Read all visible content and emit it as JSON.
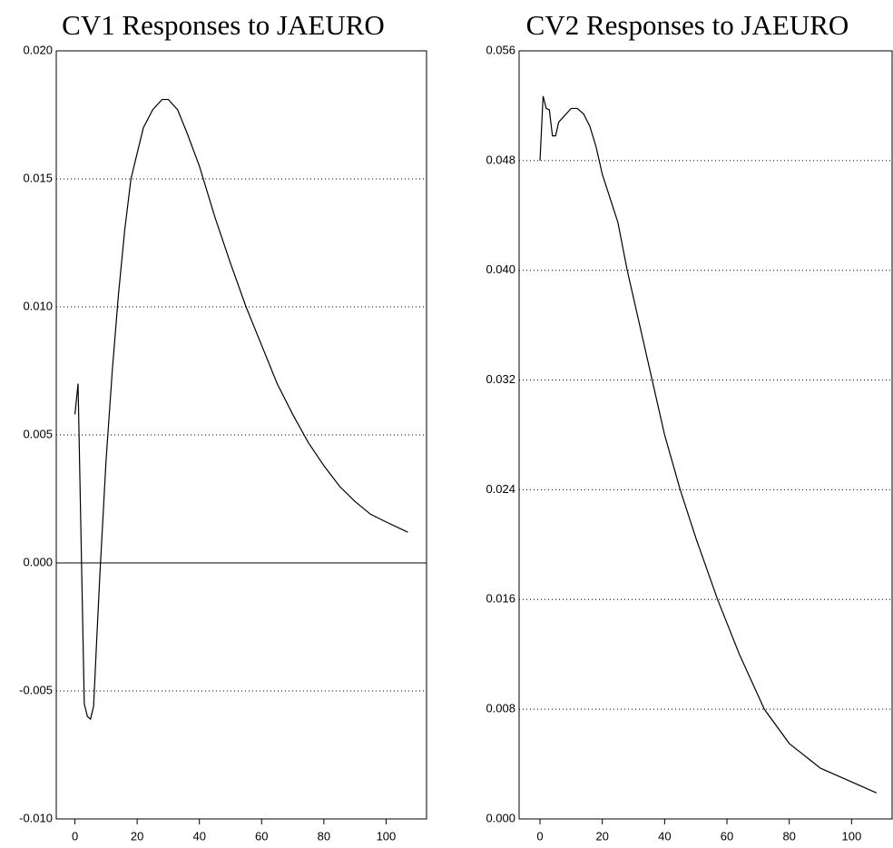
{
  "chart_data": [
    {
      "type": "line",
      "title": "CV1 Responses to JAEURO",
      "x": [
        0,
        1,
        3,
        4,
        5,
        6,
        7,
        8,
        10,
        12,
        14,
        16,
        18,
        20,
        22,
        25,
        28,
        30,
        33,
        36,
        40,
        45,
        50,
        55,
        60,
        65,
        70,
        75,
        80,
        85,
        90,
        95,
        100,
        107
      ],
      "values": [
        0.0058,
        0.007,
        -0.0055,
        -0.006,
        -0.0061,
        -0.0056,
        -0.003,
        -0.0005,
        0.004,
        0.0075,
        0.0105,
        0.013,
        0.015,
        0.016,
        0.017,
        0.0177,
        0.0181,
        0.0181,
        0.0177,
        0.0168,
        0.0155,
        0.0135,
        0.0117,
        0.01,
        0.0085,
        0.007,
        0.0058,
        0.0047,
        0.0038,
        0.003,
        0.0024,
        0.0019,
        0.0016,
        0.0012
      ],
      "color": "#000000",
      "xlim": [
        -6,
        113
      ],
      "xticks": [
        0,
        20,
        40,
        60,
        80,
        100
      ],
      "ylim": [
        -0.01,
        0.02
      ],
      "yticks": [
        {
          "value": -0.01,
          "label": "-0.010"
        },
        {
          "value": -0.005,
          "label": "-0.005"
        },
        {
          "value": 0,
          "label": "0.000"
        },
        {
          "value": 0.005,
          "label": "0.005"
        },
        {
          "value": 0.01,
          "label": "0.010"
        },
        {
          "value": 0.015,
          "label": "0.015"
        },
        {
          "value": 0.02,
          "label": "0.020"
        }
      ],
      "grid": true
    },
    {
      "type": "line",
      "title": "CV2 Responses to JAEURO",
      "x": [
        0,
        1,
        2,
        3,
        4,
        5,
        6,
        8,
        10,
        12,
        14,
        16,
        18,
        20,
        25,
        28,
        32,
        36,
        40,
        45,
        50,
        57,
        64,
        72,
        80,
        90,
        100,
        108
      ],
      "values": [
        0.048,
        0.0527,
        0.0518,
        0.0517,
        0.0498,
        0.0498,
        0.0508,
        0.0513,
        0.0518,
        0.0518,
        0.0514,
        0.0505,
        0.049,
        0.047,
        0.0435,
        0.04,
        0.036,
        0.032,
        0.028,
        0.024,
        0.0205,
        0.016,
        0.012,
        0.008,
        0.0055,
        0.0037,
        0.0027,
        0.0019
      ],
      "color": "#000000",
      "xlim": [
        -6.7,
        113
      ],
      "xticks": [
        0,
        20,
        40,
        60,
        80,
        100
      ],
      "ylim": [
        0,
        0.056
      ],
      "yticks": [
        {
          "value": 0,
          "label": "0.000"
        },
        {
          "value": 0.008,
          "label": "0.008"
        },
        {
          "value": 0.016,
          "label": "0.016"
        },
        {
          "value": 0.024,
          "label": "0.024"
        },
        {
          "value": 0.032,
          "label": "0.032"
        },
        {
          "value": 0.04,
          "label": "0.040"
        },
        {
          "value": 0.048,
          "label": "0.048"
        },
        {
          "value": 0.056,
          "label": "0.056"
        }
      ],
      "grid": true
    }
  ]
}
